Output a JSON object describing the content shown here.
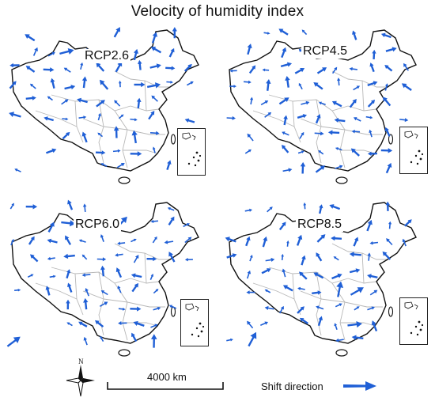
{
  "title": "Velocity of humidity index",
  "panels": [
    {
      "label": "RCP2.6"
    },
    {
      "label": "RCP4.5"
    },
    {
      "label": "RCP6.0"
    },
    {
      "label": "RCP8.5"
    }
  ],
  "scale_bar": {
    "label": "4000 km"
  },
  "north_arrow": {
    "label": "N"
  },
  "legend": {
    "label": "Shift direction"
  },
  "colors": {
    "arrow": "#1f5fd6",
    "border": "#111111",
    "province_lines": "#b8b8b8"
  }
}
